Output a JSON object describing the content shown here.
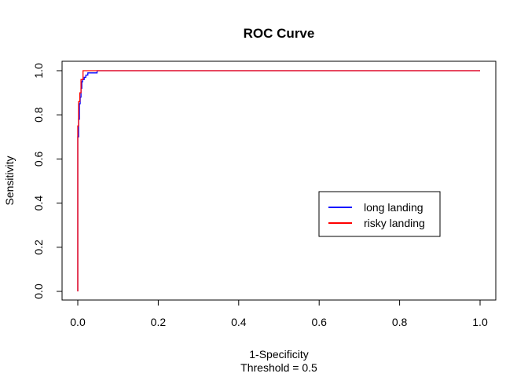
{
  "chart_data": {
    "type": "line",
    "title": "ROC Curve",
    "xlabel": "1-Specificity",
    "xlabel_sub": "Threshold = 0.5",
    "ylabel": "Sensitivity",
    "xlim": [
      0,
      1
    ],
    "ylim": [
      0,
      1
    ],
    "x_ticks": [
      "0.0",
      "0.2",
      "0.4",
      "0.6",
      "0.8",
      "1.0"
    ],
    "y_ticks": [
      "0.0",
      "0.2",
      "0.4",
      "0.6",
      "0.8",
      "1.0"
    ],
    "grid": false,
    "legend_position": "center-right",
    "series": [
      {
        "name": "long landing",
        "color": "#0000ff",
        "points": [
          [
            0,
            0
          ],
          [
            0,
            0.7
          ],
          [
            0.002,
            0.7
          ],
          [
            0.002,
            0.78
          ],
          [
            0.004,
            0.78
          ],
          [
            0.004,
            0.85
          ],
          [
            0.006,
            0.85
          ],
          [
            0.006,
            0.88
          ],
          [
            0.008,
            0.88
          ],
          [
            0.008,
            0.92
          ],
          [
            0.01,
            0.92
          ],
          [
            0.01,
            0.95
          ],
          [
            0.012,
            0.95
          ],
          [
            0.012,
            0.96
          ],
          [
            0.016,
            0.96
          ],
          [
            0.016,
            0.97
          ],
          [
            0.02,
            0.97
          ],
          [
            0.02,
            0.98
          ],
          [
            0.025,
            0.98
          ],
          [
            0.025,
            0.99
          ],
          [
            0.048,
            0.99
          ],
          [
            0.048,
            1.0
          ],
          [
            1.0,
            1.0
          ]
        ]
      },
      {
        "name": "risky landing",
        "color": "#ff0000",
        "points": [
          [
            0,
            0
          ],
          [
            0,
            0.75
          ],
          [
            0.002,
            0.75
          ],
          [
            0.002,
            0.86
          ],
          [
            0.005,
            0.86
          ],
          [
            0.005,
            0.9
          ],
          [
            0.008,
            0.9
          ],
          [
            0.008,
            0.96
          ],
          [
            0.013,
            0.96
          ],
          [
            0.013,
            1.0
          ],
          [
            1.0,
            1.0
          ]
        ]
      }
    ]
  }
}
